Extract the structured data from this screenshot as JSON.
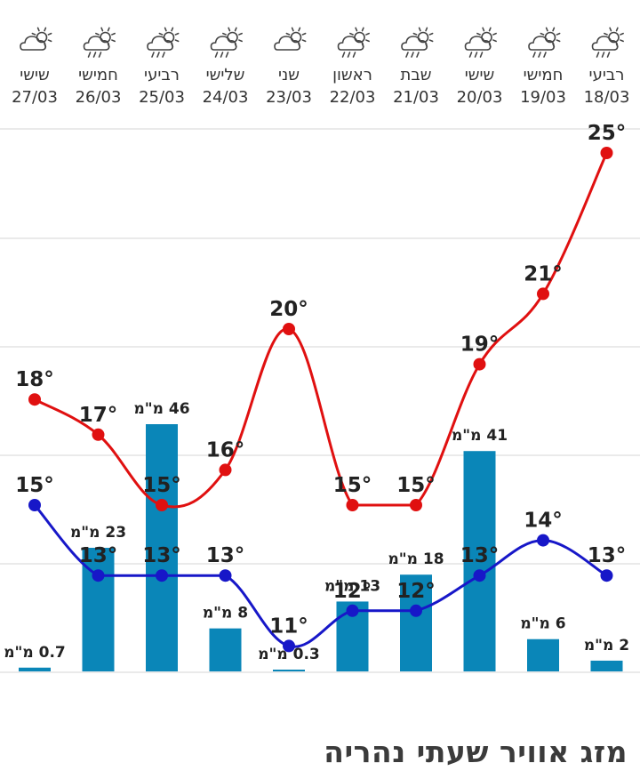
{
  "page": {
    "footer_title": "מזג אוויר שעתי נהריה"
  },
  "colors": {
    "max_line": "#e01010",
    "min_line": "#1717c8",
    "bars": "#0a86b8",
    "grid": "#e4e4e4",
    "text": "#222222"
  },
  "chart_data": {
    "type": "bar+line",
    "days": [
      "שישי",
      "חמישי",
      "רביעי",
      "שלישי",
      "שני",
      "ראשון",
      "שבת",
      "שישי",
      "חמישי",
      "רביעי"
    ],
    "dates": [
      "27/03",
      "26/03",
      "25/03",
      "24/03",
      "23/03",
      "22/03",
      "21/03",
      "20/03",
      "19/03",
      "18/03"
    ],
    "icons": [
      "cloud-sun-icon",
      "cloud-sun-rain-icon",
      "cloud-sun-rain-icon",
      "cloud-sun-rain-icon",
      "cloud-sun-icon",
      "cloud-sun-rain-icon",
      "cloud-sun-rain-icon",
      "cloud-sun-rain-icon",
      "cloud-sun-rain-icon",
      "cloud-sun-rain-icon"
    ],
    "max_temp": [
      18,
      17,
      15,
      16,
      20,
      15,
      15,
      19,
      21,
      25
    ],
    "max_temp_labels": [
      "18°",
      "17°",
      "15°",
      "16°",
      "20°",
      "15°",
      "15°",
      "19°",
      "21°",
      "25°"
    ],
    "min_temp": [
      15,
      13,
      13,
      13,
      11,
      12,
      12,
      13,
      14,
      13
    ],
    "min_temp_labels": [
      "15°",
      "13°",
      "13°",
      "13°",
      "11°",
      "12°",
      "12°",
      "13°",
      "14°",
      "13°"
    ],
    "precipitation_mm": [
      0.7,
      23,
      46,
      8,
      0.3,
      13,
      18,
      41,
      6,
      2
    ],
    "precipitation_labels": [
      "0.7 מ\"מ",
      "23 מ\"מ",
      "46 מ\"מ",
      "8 מ\"מ",
      "0.3 מ\"מ",
      "13 מ\"מ",
      "18 מ\"מ",
      "41 מ\"מ",
      "6 מ\"מ",
      "2 מ\"מ"
    ],
    "temp_range": [
      10,
      25
    ],
    "grid": true
  }
}
